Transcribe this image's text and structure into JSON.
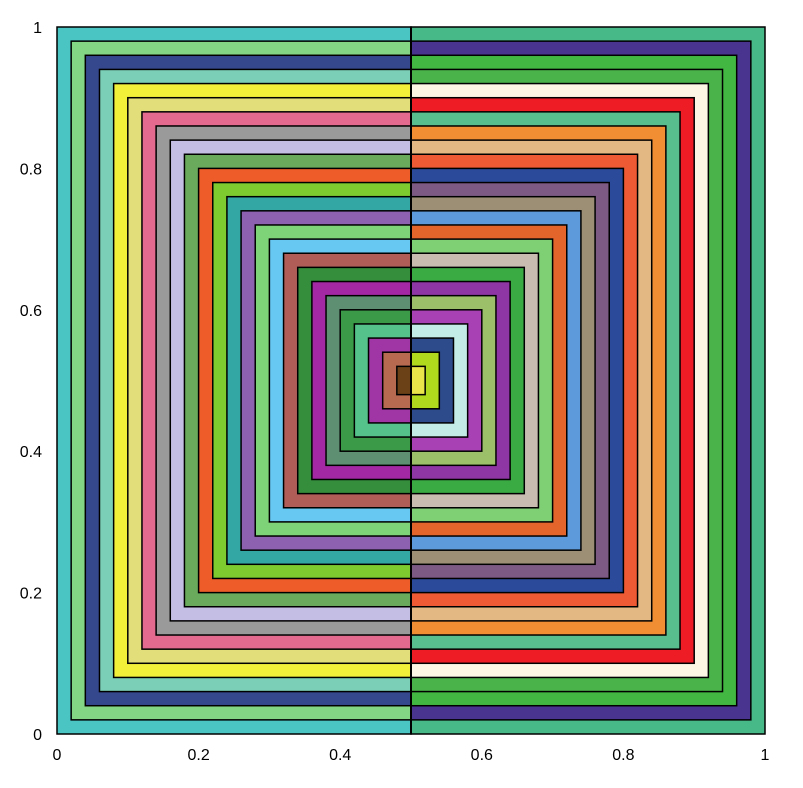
{
  "chart_data": {
    "type": "nested-squares",
    "title": "",
    "xlabel": "",
    "ylabel": "",
    "xlim": [
      0,
      1
    ],
    "ylim": [
      0,
      1
    ],
    "grid": false,
    "legend": "none",
    "xticks": [
      {
        "value": 0,
        "label": "0"
      },
      {
        "value": 0.2,
        "label": "0.2"
      },
      {
        "value": 0.4,
        "label": "0.4"
      },
      {
        "value": 0.6,
        "label": "0.6"
      },
      {
        "value": 0.8,
        "label": "0.8"
      },
      {
        "value": 1,
        "label": "1"
      }
    ],
    "yticks": [
      {
        "value": 0,
        "label": "0"
      },
      {
        "value": 0.2,
        "label": "0.2"
      },
      {
        "value": 0.4,
        "label": "0.4"
      },
      {
        "value": 0.6,
        "label": "0.6"
      },
      {
        "value": 0.8,
        "label": "0.8"
      },
      {
        "value": 1,
        "label": "1"
      }
    ],
    "split_x": 0.5,
    "level_step": 0.02,
    "levels": [
      {
        "level": 0,
        "bounds": [
          0,
          1
        ],
        "left_color": "#4BC4C4",
        "right_color": "#47B887"
      },
      {
        "level": 1,
        "bounds": [
          0.02,
          0.98
        ],
        "left_color": "#83D683",
        "right_color": "#49348F"
      },
      {
        "level": 2,
        "bounds": [
          0.04,
          0.96
        ],
        "left_color": "#35488E",
        "right_color": "#42B742"
      },
      {
        "level": 3,
        "bounds": [
          0.06,
          0.94
        ],
        "left_color": "#7BCFB6",
        "right_color": "#4AB34A"
      },
      {
        "level": 4,
        "bounds": [
          0.08,
          0.92
        ],
        "left_color": "#F3F03A",
        "right_color": "#FDF6E5"
      },
      {
        "level": 5,
        "bounds": [
          0.1,
          0.9
        ],
        "left_color": "#E2DE7A",
        "right_color": "#EE1D25"
      },
      {
        "level": 6,
        "bounds": [
          0.12,
          0.88
        ],
        "left_color": "#E56A8F",
        "right_color": "#58BE8D"
      },
      {
        "level": 7,
        "bounds": [
          0.14,
          0.86
        ],
        "left_color": "#9B9A9B",
        "right_color": "#F18E33"
      },
      {
        "level": 8,
        "bounds": [
          0.16,
          0.84
        ],
        "left_color": "#C4BEE4",
        "right_color": "#E4B882"
      },
      {
        "level": 9,
        "bounds": [
          0.18,
          0.82
        ],
        "left_color": "#6AAA5C",
        "right_color": "#EE5A33"
      },
      {
        "level": 10,
        "bounds": [
          0.2,
          0.8
        ],
        "left_color": "#EE5D29",
        "right_color": "#2B4B9A"
      },
      {
        "level": 11,
        "bounds": [
          0.22,
          0.78
        ],
        "left_color": "#7DCB2F",
        "right_color": "#7C5A84"
      },
      {
        "level": 12,
        "bounds": [
          0.24,
          0.76
        ],
        "left_color": "#32A7A4",
        "right_color": "#9C8F75"
      },
      {
        "level": 13,
        "bounds": [
          0.26,
          0.74
        ],
        "left_color": "#8D61B0",
        "right_color": "#5D9ADB"
      },
      {
        "level": 14,
        "bounds": [
          0.28,
          0.72
        ],
        "left_color": "#7ED378",
        "right_color": "#E3652B"
      },
      {
        "level": 15,
        "bounds": [
          0.3,
          0.7
        ],
        "left_color": "#67C8F2",
        "right_color": "#7FCF75"
      },
      {
        "level": 16,
        "bounds": [
          0.32,
          0.68
        ],
        "left_color": "#B05D58",
        "right_color": "#C7BCAF"
      },
      {
        "level": 17,
        "bounds": [
          0.34,
          0.66
        ],
        "left_color": "#358E3B",
        "right_color": "#3AAB43"
      },
      {
        "level": 18,
        "bounds": [
          0.36,
          0.64
        ],
        "left_color": "#A229A3",
        "right_color": "#8E36A3"
      },
      {
        "level": 19,
        "bounds": [
          0.38,
          0.62
        ],
        "left_color": "#5F8F73",
        "right_color": "#9CBF6A"
      },
      {
        "level": 20,
        "bounds": [
          0.4,
          0.6
        ],
        "left_color": "#3A9A48",
        "right_color": "#A841B4"
      },
      {
        "level": 21,
        "bounds": [
          0.42,
          0.58
        ],
        "left_color": "#55C18B",
        "right_color": "#C3ECE6"
      },
      {
        "level": 22,
        "bounds": [
          0.44,
          0.56
        ],
        "left_color": "#A035A6",
        "right_color": "#2D4A8A"
      },
      {
        "level": 23,
        "bounds": [
          0.46,
          0.54
        ],
        "left_color": "#B86A50",
        "right_color": "#B0D81C"
      },
      {
        "level": 24,
        "bounds": [
          0.48,
          0.52
        ],
        "left_color": "#6B4118",
        "right_color": "#E8E44A"
      }
    ]
  }
}
